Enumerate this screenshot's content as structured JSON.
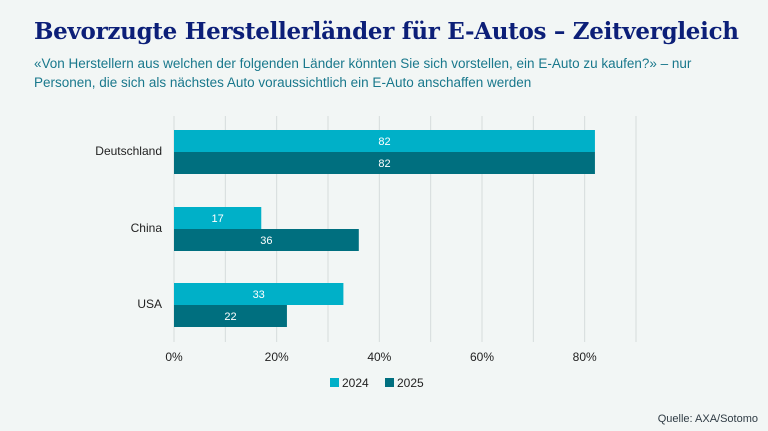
{
  "header": {
    "title": "Bevorzugte Herstellerländer für E-Autos – Zeitvergleich",
    "subtitle": "«Von Herstellern aus welchen der folgenden Länder könnten Sie sich vorstellen, ein E-Auto zu kaufen?» – nur Personen, die sich als nächstes Auto voraussichtlich ein E-Auto anschaffen werden"
  },
  "source": "Quelle: AXA/Sotomo",
  "colors": {
    "2024": "#00b0c8",
    "2025": "#006f7f",
    "grid": "#d5dcdb"
  },
  "chart_data": {
    "type": "bar",
    "orientation": "horizontal",
    "title": "Bevorzugte Herstellerländer für E-Autos – Zeitvergleich",
    "categories": [
      "Deutschland",
      "China",
      "USA"
    ],
    "series": [
      {
        "name": "2024",
        "values": [
          82,
          17,
          33
        ]
      },
      {
        "name": "2025",
        "values": [
          82,
          36,
          22
        ]
      }
    ],
    "xlim": [
      0,
      90
    ],
    "xticks": [
      0,
      20,
      40,
      60,
      80
    ],
    "tick_labels": [
      "0%",
      "20%",
      "40%",
      "60%",
      "80%"
    ],
    "grid": true,
    "legend": "bottom-center"
  }
}
